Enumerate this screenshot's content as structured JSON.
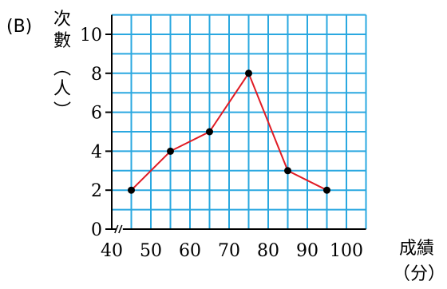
{
  "panel_label": "(B)",
  "y_axis_label_chars": [
    "次",
    "數",
    "︵",
    "人",
    "︶"
  ],
  "x_axis_label": [
    "成績",
    "（分）"
  ],
  "colors": {
    "grid": "#2aa8e0",
    "axis": "#000000",
    "line": "#e01b24",
    "marker": "#000000"
  },
  "chart_data": {
    "type": "line",
    "title": "",
    "xlabel": "成績（分）",
    "ylabel": "次數（人）",
    "x_ticks": [
      40,
      50,
      60,
      70,
      80,
      90,
      100
    ],
    "y_ticks": [
      0,
      2,
      4,
      6,
      8,
      10
    ],
    "xlim": [
      40,
      105
    ],
    "ylim": [
      0,
      11
    ],
    "x_axis_break": true,
    "grid": true,
    "series": [
      {
        "x": [
          45,
          55,
          65,
          75,
          85,
          95
        ],
        "y": [
          2,
          4,
          5,
          8,
          3,
          2
        ]
      }
    ]
  }
}
